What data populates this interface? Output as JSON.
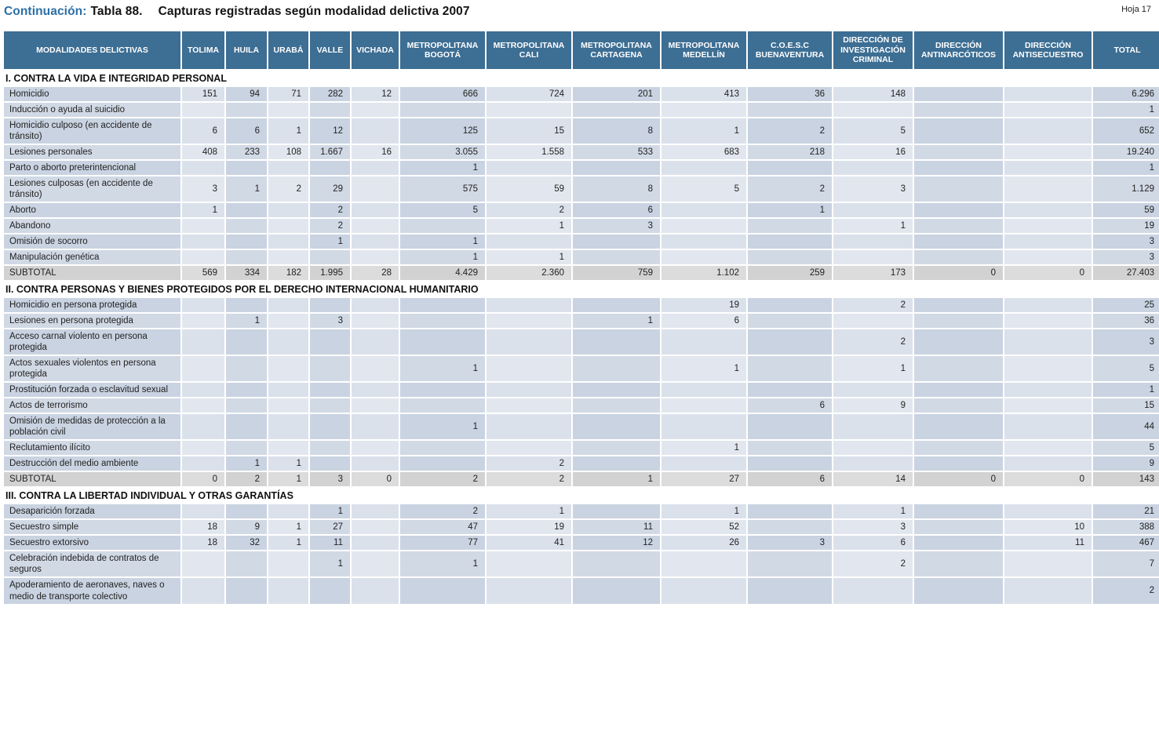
{
  "header": {
    "continuation": "Continuación:",
    "table_number": "Tabla 88.",
    "title": "Capturas registradas según modalidad delictiva 2007",
    "sheet": "Hoja 17"
  },
  "colors": {
    "title_accent": "#2c6fa5",
    "header_bg": "#3d6e93",
    "cell_dark": "#c9d3e1",
    "cell_light": "#dbe1eb",
    "subtotal_bg": "#d2d2d2"
  },
  "table": {
    "columns": [
      "MODALIDADES DELICTIVAS",
      "TOLIMA",
      "HUILA",
      "URABÁ",
      "VALLE",
      "VICHADA",
      "METROPOLITANA BOGOTÁ",
      "METROPOLITANA CALI",
      "METROPOLITANA CARTAGENA",
      "METROPOLITANA MEDELLÍN",
      "C.O.E.S.C BUENAVENTURA",
      "DIRECCIÓN DE INVESTIGACIÓN CRIMINAL",
      "DIRECCIÓN ANTINARCÓTICOS",
      "DIRECCIÓN ANTISECUESTRO",
      "TOTAL"
    ],
    "sections": [
      {
        "title": "I. CONTRA LA VIDA E INTEGRIDAD PERSONAL",
        "rows": [
          {
            "label": "Homicidio",
            "values": [
              "151",
              "94",
              "71",
              "282",
              "12",
              "666",
              "724",
              "201",
              "413",
              "36",
              "148",
              "",
              "",
              "6.296"
            ]
          },
          {
            "label": "Inducción o ayuda al suicidio",
            "values": [
              "",
              "",
              "",
              "",
              "",
              "",
              "",
              "",
              "",
              "",
              "",
              "",
              "",
              "1"
            ]
          },
          {
            "label": "Homicidio culposo (en accidente de tránsito)",
            "values": [
              "6",
              "6",
              "1",
              "12",
              "",
              "125",
              "15",
              "8",
              "1",
              "2",
              "5",
              "",
              "",
              "652"
            ]
          },
          {
            "label": "Lesiones personales",
            "values": [
              "408",
              "233",
              "108",
              "1.667",
              "16",
              "3.055",
              "1.558",
              "533",
              "683",
              "218",
              "16",
              "",
              "",
              "19.240"
            ]
          },
          {
            "label": "Parto o aborto preterintencional",
            "values": [
              "",
              "",
              "",
              "",
              "",
              "1",
              "",
              "",
              "",
              "",
              "",
              "",
              "",
              "1"
            ]
          },
          {
            "label": "Lesiones culposas (en accidente de tránsito)",
            "values": [
              "3",
              "1",
              "2",
              "29",
              "",
              "575",
              "59",
              "8",
              "5",
              "2",
              "3",
              "",
              "",
              "1.129"
            ]
          },
          {
            "label": "Aborto",
            "values": [
              "1",
              "",
              "",
              "2",
              "",
              "5",
              "2",
              "6",
              "",
              "1",
              "",
              "",
              "",
              "59"
            ]
          },
          {
            "label": "Abandono",
            "values": [
              "",
              "",
              "",
              "2",
              "",
              "",
              "1",
              "3",
              "",
              "",
              "1",
              "",
              "",
              "19"
            ]
          },
          {
            "label": "Omisión de socorro",
            "values": [
              "",
              "",
              "",
              "1",
              "",
              "1",
              "",
              "",
              "",
              "",
              "",
              "",
              "",
              "3"
            ]
          },
          {
            "label": "Manipulación genética",
            "values": [
              "",
              "",
              "",
              "",
              "",
              "1",
              "1",
              "",
              "",
              "",
              "",
              "",
              "",
              "3"
            ]
          },
          {
            "label": "SUBTOTAL",
            "subtotal": true,
            "values": [
              "569",
              "334",
              "182",
              "1.995",
              "28",
              "4.429",
              "2.360",
              "759",
              "1.102",
              "259",
              "173",
              "0",
              "0",
              "27.403"
            ]
          }
        ]
      },
      {
        "title": "II. CONTRA PERSONAS Y BIENES PROTEGIDOS POR EL DERECHO INTERNACIONAL HUMANITARIO",
        "rows": [
          {
            "label": "Homicidio en persona protegida",
            "values": [
              "",
              "",
              "",
              "",
              "",
              "",
              "",
              "",
              "19",
              "",
              "2",
              "",
              "",
              "25"
            ]
          },
          {
            "label": "Lesiones en persona protegida",
            "values": [
              "",
              "1",
              "",
              "3",
              "",
              "",
              "",
              "1",
              "6",
              "",
              "",
              "",
              "",
              "36"
            ]
          },
          {
            "label": "Acceso carnal violento en persona protegida",
            "values": [
              "",
              "",
              "",
              "",
              "",
              "",
              "",
              "",
              "",
              "",
              "2",
              "",
              "",
              "3"
            ]
          },
          {
            "label": "Actos sexuales violentos en persona protegida",
            "values": [
              "",
              "",
              "",
              "",
              "",
              "1",
              "",
              "",
              "1",
              "",
              "1",
              "",
              "",
              "5"
            ]
          },
          {
            "label": "Prostitución forzada o esclavitud sexual",
            "values": [
              "",
              "",
              "",
              "",
              "",
              "",
              "",
              "",
              "",
              "",
              "",
              "",
              "",
              "1"
            ]
          },
          {
            "label": "Actos de terrorismo",
            "values": [
              "",
              "",
              "",
              "",
              "",
              "",
              "",
              "",
              "",
              "6",
              "9",
              "",
              "",
              "15"
            ]
          },
          {
            "label": "Omisión de medidas de protección a la población civil",
            "values": [
              "",
              "",
              "",
              "",
              "",
              "1",
              "",
              "",
              "",
              "",
              "",
              "",
              "",
              "44"
            ]
          },
          {
            "label": "Reclutamiento ilícito",
            "values": [
              "",
              "",
              "",
              "",
              "",
              "",
              "",
              "",
              "1",
              "",
              "",
              "",
              "",
              "5"
            ]
          },
          {
            "label": "Destrucción del medio ambiente",
            "values": [
              "",
              "1",
              "1",
              "",
              "",
              "",
              "2",
              "",
              "",
              "",
              "",
              "",
              "",
              "9"
            ]
          },
          {
            "label": "SUBTOTAL",
            "subtotal": true,
            "values": [
              "0",
              "2",
              "1",
              "3",
              "0",
              "2",
              "2",
              "1",
              "27",
              "6",
              "14",
              "0",
              "0",
              "143"
            ]
          }
        ]
      },
      {
        "title": "III. CONTRA LA LIBERTAD INDIVIDUAL Y OTRAS GARANTÍAS",
        "rows": [
          {
            "label": "Desaparición forzada",
            "values": [
              "",
              "",
              "",
              "1",
              "",
              "2",
              "1",
              "",
              "1",
              "",
              "1",
              "",
              "",
              "21"
            ]
          },
          {
            "label": "Secuestro simple",
            "values": [
              "18",
              "9",
              "1",
              "27",
              "",
              "47",
              "19",
              "11",
              "52",
              "",
              "3",
              "",
              "10",
              "388"
            ]
          },
          {
            "label": "Secuestro extorsivo",
            "values": [
              "18",
              "32",
              "1",
              "11",
              "",
              "77",
              "41",
              "12",
              "26",
              "3",
              "6",
              "",
              "11",
              "467"
            ]
          },
          {
            "label": "Celebración indebida de contratos de seguros",
            "values": [
              "",
              "",
              "",
              "1",
              "",
              "1",
              "",
              "",
              "",
              "",
              "2",
              "",
              "",
              "7"
            ]
          },
          {
            "label": "Apoderamiento de aeronaves, naves o medio de transporte colectivo",
            "values": [
              "",
              "",
              "",
              "",
              "",
              "",
              "",
              "",
              "",
              "",
              "",
              "",
              "",
              "2"
            ]
          }
        ]
      }
    ]
  }
}
